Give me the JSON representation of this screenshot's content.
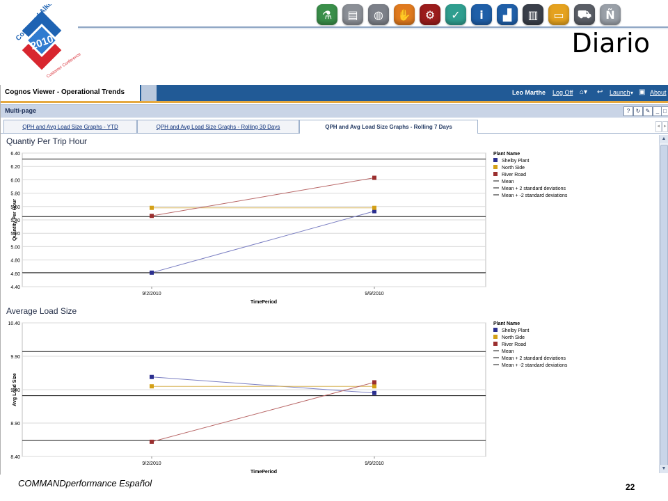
{
  "slide": {
    "title": "Diario",
    "footer": "COMMANDperformance Español",
    "page_number": "22",
    "logo": {
      "lines": [
        "Command Alkon",
        "2010",
        "Customer Conference"
      ]
    },
    "icons": [
      {
        "name": "flask-icon",
        "color": "#3a8f4a",
        "glyph": "⚗"
      },
      {
        "name": "road-icon",
        "color": "#8b8f96",
        "glyph": "▤"
      },
      {
        "name": "globe-icon",
        "color": "#7c8089",
        "glyph": "◍"
      },
      {
        "name": "hand-icon",
        "color": "#e07a1f",
        "glyph": "✋"
      },
      {
        "name": "gears-icon",
        "color": "#9b1c1c",
        "glyph": "⚙"
      },
      {
        "name": "checkmark-icon",
        "color": "#2f9e8f",
        "glyph": "✓"
      },
      {
        "name": "info-icon",
        "color": "#1f5fa8",
        "glyph": "i"
      },
      {
        "name": "podium-icon",
        "color": "#1f5fa8",
        "glyph": "▟"
      },
      {
        "name": "panels-icon",
        "color": "#3a3f4a",
        "glyph": "▥"
      },
      {
        "name": "screen-icon",
        "color": "#e5a21f",
        "glyph": "▭"
      },
      {
        "name": "truck-icon",
        "color": "#5a5e66",
        "glyph": "⛟"
      },
      {
        "name": "n-letter-icon",
        "color": "#9aa0a8",
        "glyph": "Ñ"
      }
    ]
  },
  "viewer": {
    "title": "Cognos Viewer - Operational Trends",
    "user": "Leo Marthe",
    "log_off": "Log Off",
    "launch": "Launch",
    "about": "About",
    "multipage": "Multi-page",
    "tabs": [
      {
        "label": "QPH and Avg Load Size Graphs - YTD",
        "active": false
      },
      {
        "label": "QPH and Avg Load Size Graphs - Rolling 30 Days",
        "active": false
      },
      {
        "label": "QPH and Avg Load Size Graphs - Rolling 7 Days",
        "active": true
      }
    ]
  },
  "chart_data": [
    {
      "type": "line",
      "title": "Quantiy Per Trip Hour",
      "xlabel": "TimePeriod",
      "ylabel": "Quantity Per Hour",
      "categories": [
        "9/2/2010",
        "9/9/2010"
      ],
      "ylim": [
        4.4,
        6.4
      ],
      "yticks": [
        "6.40",
        "6.20",
        "6.00",
        "5.80",
        "5.60",
        "5.40",
        "5.20",
        "5.00",
        "4.80",
        "4.60",
        "4.40"
      ],
      "grid": true,
      "legend_title": "Plant Name",
      "legend_position": "right",
      "series": [
        {
          "name": "Shelby Plant",
          "color": "#2b2f8f",
          "line_color": "#7a7ec2",
          "values": [
            4.61,
            5.53
          ]
        },
        {
          "name": "North Side",
          "color": "#d4a017",
          "line_color": "#d9b65c",
          "values": [
            5.58,
            5.58
          ]
        },
        {
          "name": "River Road",
          "color": "#9b2f2f",
          "line_color": "#b86666",
          "values": [
            5.46,
            6.03
          ]
        }
      ],
      "reference_lines": [
        {
          "name": "Mean",
          "value": 5.45
        },
        {
          "name": "Mean + 2 standard deviations",
          "value": 6.31
        },
        {
          "name": "Mean + -2 standard deviations",
          "value": 4.61
        }
      ]
    },
    {
      "type": "line",
      "title": "Average Load Size",
      "xlabel": "TimePeriod",
      "ylabel": "Avg Load Size",
      "categories": [
        "9/2/2010",
        "9/9/2010"
      ],
      "ylim": [
        8.4,
        10.4
      ],
      "yticks": [
        "10.40",
        "9.90",
        "9.40",
        "8.90",
        "8.40"
      ],
      "grid": true,
      "legend_title": "Plant Name",
      "legend_position": "right",
      "series": [
        {
          "name": "Shelby Plant",
          "color": "#2b2f8f",
          "line_color": "#7a7ec2",
          "values": [
            9.59,
            9.35
          ]
        },
        {
          "name": "North Side",
          "color": "#d4a017",
          "line_color": "#d9b65c",
          "values": [
            9.45,
            9.45
          ]
        },
        {
          "name": "River Road",
          "color": "#9b2f2f",
          "line_color": "#b86666",
          "values": [
            8.62,
            9.51
          ]
        }
      ],
      "reference_lines": [
        {
          "name": "Mean",
          "value": 9.31
        },
        {
          "name": "Mean + 2 standard deviations",
          "value": 9.97
        },
        {
          "name": "Mean + -2 standard deviations",
          "value": 8.64
        }
      ]
    }
  ]
}
